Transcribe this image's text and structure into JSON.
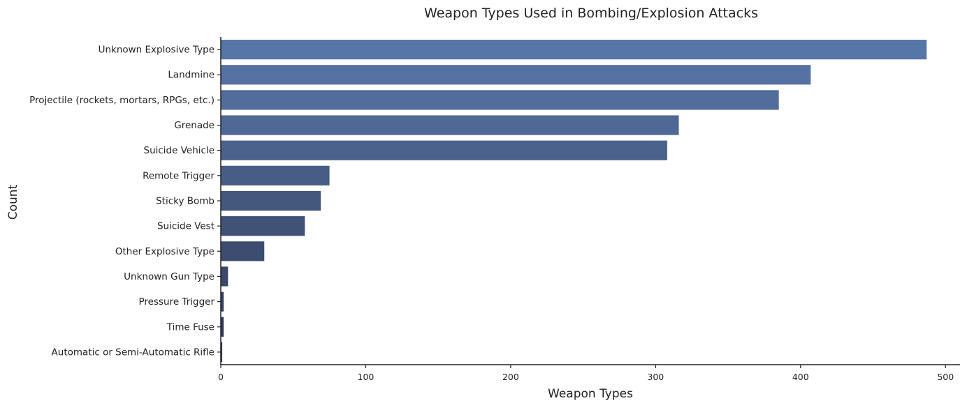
{
  "chart_data": {
    "type": "bar",
    "orientation": "horizontal",
    "title": "Weapon Types Used in Bombing/Explosion Attacks",
    "xlabel": "Weapon Types",
    "ylabel": "Count",
    "categories": [
      "Unknown Explosive Type",
      "Landmine",
      "Projectile (rockets, mortars, RPGs, etc.)",
      "Grenade",
      "Suicide Vehicle",
      "Remote Trigger",
      "Sticky Bomb",
      "Suicide Vest",
      "Other Explosive Type",
      "Unknown Gun Type",
      "Pressure Trigger",
      "Time Fuse",
      "Automatic or Semi-Automatic Rifle"
    ],
    "values": [
      487,
      407,
      385,
      316,
      308,
      75,
      69,
      58,
      30,
      5,
      2,
      2,
      1
    ],
    "xlim": [
      0,
      510
    ],
    "xticks": [
      0,
      100,
      200,
      300,
      400,
      500
    ],
    "grid": false,
    "legend": "none",
    "bar_colors": [
      "#5676a8",
      "#5572a2",
      "#526d9b",
      "#4f6894",
      "#4b628c",
      "#485d85",
      "#44587e",
      "#415277",
      "#3d4d70",
      "#3a4869",
      "#374362",
      "#343e5b",
      "#313a55"
    ]
  }
}
